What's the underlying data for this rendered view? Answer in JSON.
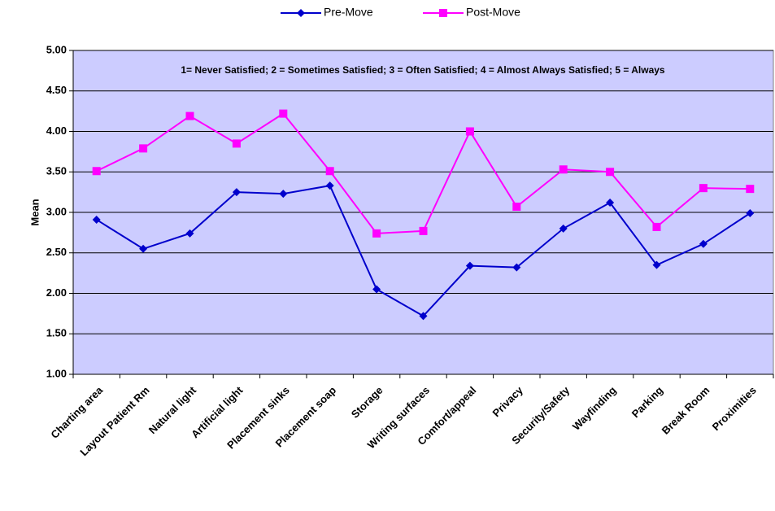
{
  "chart_data": {
    "type": "line",
    "annotation": "1= Never Satisfied; 2 = Sometimes Satisfied; 3 = Often Satisfied; 4 = Almost Always Satisfied; 5 = Always",
    "y_label": "Mean",
    "categories": [
      "Charting area",
      "Layout Patient Rm",
      "Natural light",
      "Artificial light",
      "Placement sinks",
      "Placement soap",
      "Storage",
      "Writing surfaces",
      "Comfort/appeal",
      "Privacy",
      "Security/Safety",
      "Wayfinding",
      "Parking",
      "Break Room",
      "Proximities"
    ],
    "series": [
      {
        "name": "Pre-Move",
        "color": "#0000cc",
        "marker": "diamond",
        "values": [
          2.91,
          2.55,
          2.74,
          3.25,
          3.23,
          3.33,
          2.05,
          1.72,
          2.34,
          2.32,
          2.8,
          3.12,
          2.35,
          2.61,
          2.99
        ]
      },
      {
        "name": "Post-Move",
        "color": "#ff00ff",
        "marker": "square",
        "values": [
          3.51,
          3.79,
          4.19,
          3.85,
          4.22,
          3.51,
          2.74,
          2.77,
          4.0,
          3.07,
          3.53,
          3.5,
          2.82,
          3.3,
          3.29
        ]
      }
    ],
    "ylim": [
      1,
      5
    ],
    "yticks": [
      {
        "value": 1,
        "label": "1.00"
      },
      {
        "value": 1.5,
        "label": "1.50"
      },
      {
        "value": 2,
        "label": "2.00"
      },
      {
        "value": 2.5,
        "label": "2.50"
      },
      {
        "value": 3,
        "label": "3.00"
      },
      {
        "value": 3.5,
        "label": "3.50"
      },
      {
        "value": 4,
        "label": "4.00"
      },
      {
        "value": 4.5,
        "label": "4.50"
      },
      {
        "value": 5,
        "label": "5.00"
      }
    ],
    "grid": true,
    "legend": "top",
    "plot_background": "#ccccff"
  }
}
